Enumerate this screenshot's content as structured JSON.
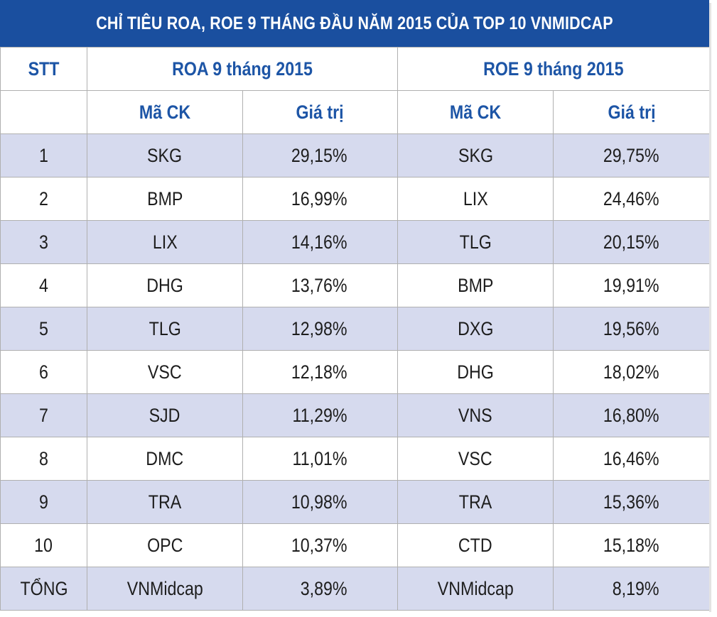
{
  "title": "CHỈ TIÊU ROA, ROE 9 THÁNG ĐẦU NĂM 2015 CỦA TOP 10 VNMIDCAP",
  "colors": {
    "title_bg": "#1a4f9f",
    "header_text": "#1d55a6",
    "row_shade": "#d6daee",
    "grid_line": "#b0b0b0"
  },
  "headers": {
    "stt": "STT",
    "roa_group": "ROA 9 tháng 2015",
    "roe_group": "ROE 9 tháng 2015",
    "roa_code": "Mã CK",
    "roa_value": "Giá trị",
    "roe_code": "Mã CK",
    "roe_value": "Giá trị"
  },
  "chart_data": {
    "type": "table",
    "title": "CHỈ TIÊU ROA, ROE 9 THÁNG ĐẦU NĂM 2015 CỦA TOP 10 VNMIDCAP",
    "columns": [
      "STT",
      "ROA Mã CK",
      "ROA Giá trị",
      "ROE Mã CK",
      "ROE Giá trị"
    ],
    "rows": [
      {
        "stt": "1",
        "roa_code": "SKG",
        "roa_value": "29,15%",
        "roe_code": "SKG",
        "roe_value": "29,75%"
      },
      {
        "stt": "2",
        "roa_code": "BMP",
        "roa_value": "16,99%",
        "roe_code": "LIX",
        "roe_value": "24,46%"
      },
      {
        "stt": "3",
        "roa_code": "LIX",
        "roa_value": "14,16%",
        "roe_code": "TLG",
        "roe_value": "20,15%"
      },
      {
        "stt": "4",
        "roa_code": "DHG",
        "roa_value": "13,76%",
        "roe_code": "BMP",
        "roe_value": "19,91%"
      },
      {
        "stt": "5",
        "roa_code": "TLG",
        "roa_value": "12,98%",
        "roe_code": "DXG",
        "roe_value": "19,56%"
      },
      {
        "stt": "6",
        "roa_code": "VSC",
        "roa_value": "12,18%",
        "roe_code": "DHG",
        "roe_value": "18,02%"
      },
      {
        "stt": "7",
        "roa_code": "SJD",
        "roa_value": "11,29%",
        "roe_code": "VNS",
        "roe_value": "16,80%"
      },
      {
        "stt": "8",
        "roa_code": "DMC",
        "roa_value": "11,01%",
        "roe_code": "VSC",
        "roe_value": "16,46%"
      },
      {
        "stt": "9",
        "roa_code": "TRA",
        "roa_value": "10,98%",
        "roe_code": "TRA",
        "roe_value": "15,36%"
      },
      {
        "stt": "10",
        "roa_code": "OPC",
        "roa_value": "10,37%",
        "roe_code": "CTD",
        "roe_value": "15,18%"
      }
    ],
    "total": {
      "stt": "TỔNG",
      "roa_code": "VNMidcap",
      "roa_value": "3,89%",
      "roe_code": "VNMidcap",
      "roe_value": "8,19%"
    }
  }
}
